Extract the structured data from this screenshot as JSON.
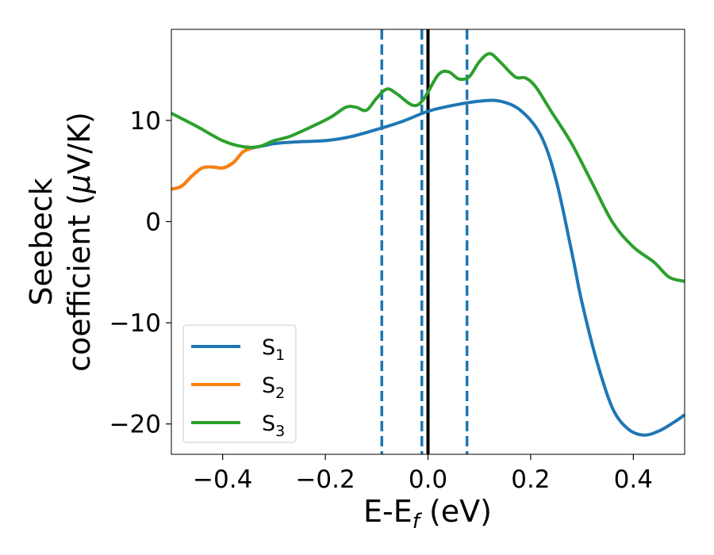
{
  "chart_data": {
    "type": "line",
    "xlabel": {
      "main": "E-E",
      "sub": "f",
      "unit": " (eV)"
    },
    "ylabel": {
      "line1": "Seebeck",
      "line2_prefix": "coefficient  (",
      "line2_mu": "μ",
      "line2_suffix": "V/K)"
    },
    "xlim": [
      -0.5,
      0.5
    ],
    "ylim": [
      -23,
      19
    ],
    "xticks": [
      -0.4,
      -0.2,
      0.0,
      0.2,
      0.4
    ],
    "xtick_labels": [
      "−0.4",
      "−0.2",
      "0.0",
      "0.2",
      "0.4"
    ],
    "yticks": [
      -20,
      -10,
      0,
      10
    ],
    "ytick_labels": [
      "−20",
      "−10",
      "0",
      "10"
    ],
    "grid": false,
    "legend_position": "lower-left",
    "vlines": [
      {
        "x": 0.0,
        "style": "solid",
        "color": "#000000"
      },
      {
        "x": -0.09,
        "style": "dashed",
        "color": "#1f77b4"
      },
      {
        "x": -0.012,
        "style": "dashed",
        "color": "#1f77b4"
      },
      {
        "x": 0.076,
        "style": "dashed",
        "color": "#1f77b4"
      }
    ],
    "series": [
      {
        "name": "S",
        "sub": "1",
        "color": "#1f77b4",
        "points": [
          [
            -0.5,
            3.2
          ],
          [
            -0.48,
            3.5
          ],
          [
            -0.46,
            4.5
          ],
          [
            -0.44,
            5.3
          ],
          [
            -0.42,
            5.4
          ],
          [
            -0.4,
            5.3
          ],
          [
            -0.38,
            5.8
          ],
          [
            -0.36,
            6.9
          ],
          [
            -0.34,
            7.3
          ],
          [
            -0.32,
            7.5
          ],
          [
            -0.3,
            7.7
          ],
          [
            -0.28,
            7.8
          ],
          [
            -0.25,
            7.9
          ],
          [
            -0.2,
            8.0
          ],
          [
            -0.15,
            8.4
          ],
          [
            -0.1,
            9.1
          ],
          [
            -0.05,
            9.9
          ],
          [
            0.0,
            10.9
          ],
          [
            0.05,
            11.5
          ],
          [
            0.1,
            11.9
          ],
          [
            0.14,
            11.9
          ],
          [
            0.18,
            11.0
          ],
          [
            0.22,
            8.5
          ],
          [
            0.25,
            4.0
          ],
          [
            0.28,
            -3.0
          ],
          [
            0.3,
            -8.0
          ],
          [
            0.33,
            -14.0
          ],
          [
            0.36,
            -18.5
          ],
          [
            0.39,
            -20.5
          ],
          [
            0.42,
            -21.1
          ],
          [
            0.45,
            -20.7
          ],
          [
            0.48,
            -19.8
          ],
          [
            0.5,
            -19.1
          ]
        ]
      },
      {
        "name": "S",
        "sub": "2",
        "color": "#ff7f0e",
        "points": [
          [
            -0.5,
            3.2
          ],
          [
            -0.48,
            3.5
          ],
          [
            -0.46,
            4.5
          ],
          [
            -0.44,
            5.3
          ],
          [
            -0.42,
            5.4
          ],
          [
            -0.4,
            5.3
          ],
          [
            -0.38,
            5.8
          ],
          [
            -0.36,
            6.9
          ],
          [
            -0.34,
            7.3
          ]
        ]
      },
      {
        "name": "S",
        "sub": "3",
        "color": "#2ca02c",
        "points": [
          [
            -0.5,
            10.7
          ],
          [
            -0.45,
            9.4
          ],
          [
            -0.4,
            8.0
          ],
          [
            -0.36,
            7.4
          ],
          [
            -0.33,
            7.4
          ],
          [
            -0.3,
            8.0
          ],
          [
            -0.27,
            8.4
          ],
          [
            -0.23,
            9.3
          ],
          [
            -0.19,
            10.3
          ],
          [
            -0.16,
            11.3
          ],
          [
            -0.14,
            11.3
          ],
          [
            -0.12,
            11.0
          ],
          [
            -0.1,
            12.2
          ],
          [
            -0.08,
            13.1
          ],
          [
            -0.06,
            12.6
          ],
          [
            -0.03,
            11.5
          ],
          [
            -0.01,
            12.0
          ],
          [
            0.02,
            14.5
          ],
          [
            0.04,
            14.8
          ],
          [
            0.06,
            14.1
          ],
          [
            0.08,
            14.3
          ],
          [
            0.1,
            15.8
          ],
          [
            0.12,
            16.6
          ],
          [
            0.14,
            15.8
          ],
          [
            0.17,
            14.3
          ],
          [
            0.19,
            14.2
          ],
          [
            0.21,
            13.3
          ],
          [
            0.24,
            10.9
          ],
          [
            0.28,
            7.7
          ],
          [
            0.32,
            3.8
          ],
          [
            0.36,
            -0.1
          ],
          [
            0.4,
            -2.5
          ],
          [
            0.44,
            -4.0
          ],
          [
            0.47,
            -5.5
          ],
          [
            0.5,
            -5.9
          ]
        ]
      }
    ]
  }
}
